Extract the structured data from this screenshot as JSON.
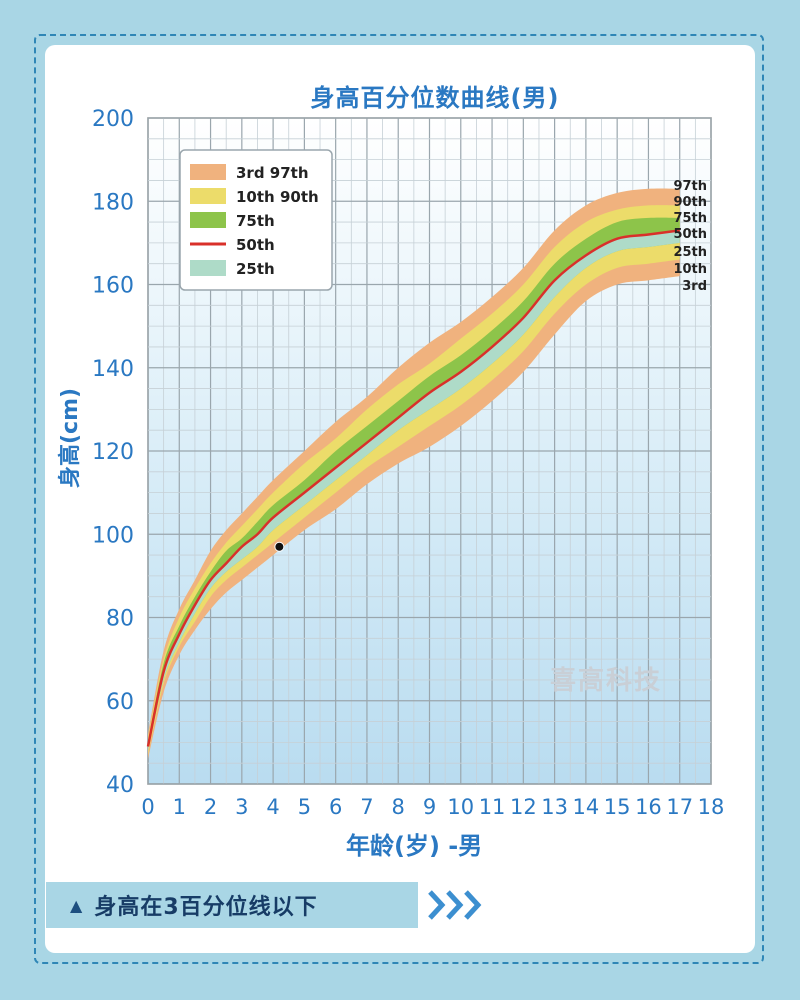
{
  "banner": {
    "text": "身高在3百分位线以下",
    "arrow_icon": "triangle-up-icon",
    "chevrons_icon": "chevron-right-icon"
  },
  "watermark": {
    "text": "喜高科技"
  },
  "colors": {
    "background": "#a9d6e5",
    "title": "#2a78c2",
    "band_3_97": "#f0b27e",
    "band_10_90": "#ecdc6a",
    "band_75": "#8dc44a",
    "line_50": "#d9302a",
    "band_25": "#aedbc8"
  },
  "chart_data": {
    "type": "area",
    "title": "身高百分位数曲线(男)",
    "xlabel": "年龄(岁) -男",
    "ylabel": "身高(cm)",
    "xlim": [
      0,
      18
    ],
    "ylim": [
      40,
      200
    ],
    "xticks": [
      0,
      1,
      2,
      3,
      4,
      5,
      6,
      7,
      8,
      9,
      10,
      11,
      12,
      13,
      14,
      15,
      16,
      17,
      18
    ],
    "yticks": [
      40,
      60,
      80,
      100,
      120,
      140,
      160,
      180,
      200
    ],
    "grid": true,
    "legend_position": "top-left",
    "legend": [
      {
        "label": "3rd   97th",
        "color": "#f0b27e",
        "kind": "band"
      },
      {
        "label": "10th  90th",
        "color": "#ecdc6a",
        "kind": "band"
      },
      {
        "label": "75th",
        "color": "#8dc44a",
        "kind": "band"
      },
      {
        "label": "50th",
        "color": "#d9302a",
        "kind": "line"
      },
      {
        "label": "25th",
        "color": "#aedbc8",
        "kind": "band"
      }
    ],
    "x": [
      0,
      0.5,
      1,
      1.5,
      2,
      2.5,
      3,
      3.5,
      4,
      5,
      6,
      7,
      8,
      9,
      10,
      11,
      12,
      13,
      14,
      15,
      16,
      17
    ],
    "series": [
      {
        "name": "3rd",
        "values": [
          46,
          62,
          71,
          77,
          82,
          86,
          89,
          92,
          95,
          101,
          106,
          112,
          117,
          121,
          126,
          132,
          139,
          148,
          156,
          160,
          161,
          162
        ]
      },
      {
        "name": "10th",
        "values": [
          47,
          64,
          73,
          79,
          85,
          89,
          92,
          95,
          98,
          104,
          110,
          116,
          121,
          126,
          131,
          137,
          144,
          153,
          160,
          164,
          165,
          166
        ]
      },
      {
        "name": "25th",
        "values": [
          48,
          65,
          74,
          81,
          87,
          91,
          94,
          97,
          101,
          107,
          113,
          119,
          125,
          130,
          135,
          141,
          148,
          157,
          164,
          168,
          169,
          170
        ]
      },
      {
        "name": "50th",
        "values": [
          49,
          67,
          76,
          83,
          89,
          93,
          97,
          100,
          104,
          110,
          116,
          122,
          128,
          134,
          139,
          145,
          152,
          161,
          167,
          171,
          172,
          173
        ]
      },
      {
        "name": "75th",
        "values": [
          50,
          69,
          78,
          85,
          91,
          96,
          99,
          103,
          107,
          113,
          120,
          126,
          132,
          138,
          143,
          149,
          156,
          165,
          171,
          175,
          176,
          176
        ]
      },
      {
        "name": "90th",
        "values": [
          51,
          70,
          80,
          87,
          93,
          98,
          102,
          106,
          110,
          117,
          123,
          130,
          136,
          141,
          147,
          153,
          160,
          169,
          175,
          178,
          179,
          179
        ]
      },
      {
        "name": "97th",
        "values": [
          52,
          72,
          82,
          89,
          96,
          101,
          105,
          109,
          113,
          120,
          127,
          133,
          140,
          146,
          151,
          157,
          164,
          173,
          179,
          182,
          183,
          183
        ]
      }
    ],
    "curve_labels": [
      "97th",
      "90th",
      "75th",
      "50th",
      "25th",
      "10th",
      "3rd"
    ],
    "marker_point": {
      "x": 4.2,
      "y": 97
    }
  }
}
